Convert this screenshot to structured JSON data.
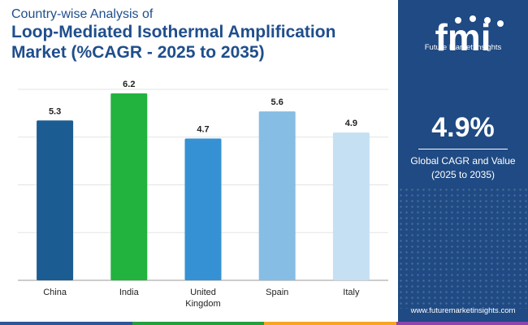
{
  "header": {
    "subtitle": "Country-wise Analysis of",
    "title_line1": "Loop-Mediated Isothermal Amplification",
    "title_line2": "Market (%CAGR - 2025 to 2035)"
  },
  "sidebar": {
    "logo_text": "Future Market Insights",
    "cagr_value": "4.9%",
    "cagr_caption_line1": "Global CAGR and Value",
    "cagr_caption_line2": "(2025 to 2035)",
    "website": "www.futuremarketinsights.com"
  },
  "colors": {
    "panel": "#1f4a83",
    "strip": [
      "#2b5797",
      "#22a03c",
      "#f5a623",
      "#8e44ad"
    ]
  },
  "chart_data": {
    "type": "bar",
    "title": "Loop-Mediated Isothermal Amplification Market (%CAGR - 2025 to 2035)",
    "categories": [
      [
        "China"
      ],
      [
        "India"
      ],
      [
        "United",
        "Kingdom"
      ],
      [
        "Spain"
      ],
      [
        "Italy"
      ]
    ],
    "values": [
      5.3,
      6.2,
      4.7,
      5.6,
      4.9
    ],
    "colors": [
      "#1b5c93",
      "#21b33e",
      "#3591d3",
      "#85bde4",
      "#c5e0f3"
    ],
    "xlabel": "",
    "ylabel": "",
    "ylim": [
      0,
      6.6
    ],
    "grid": true
  }
}
